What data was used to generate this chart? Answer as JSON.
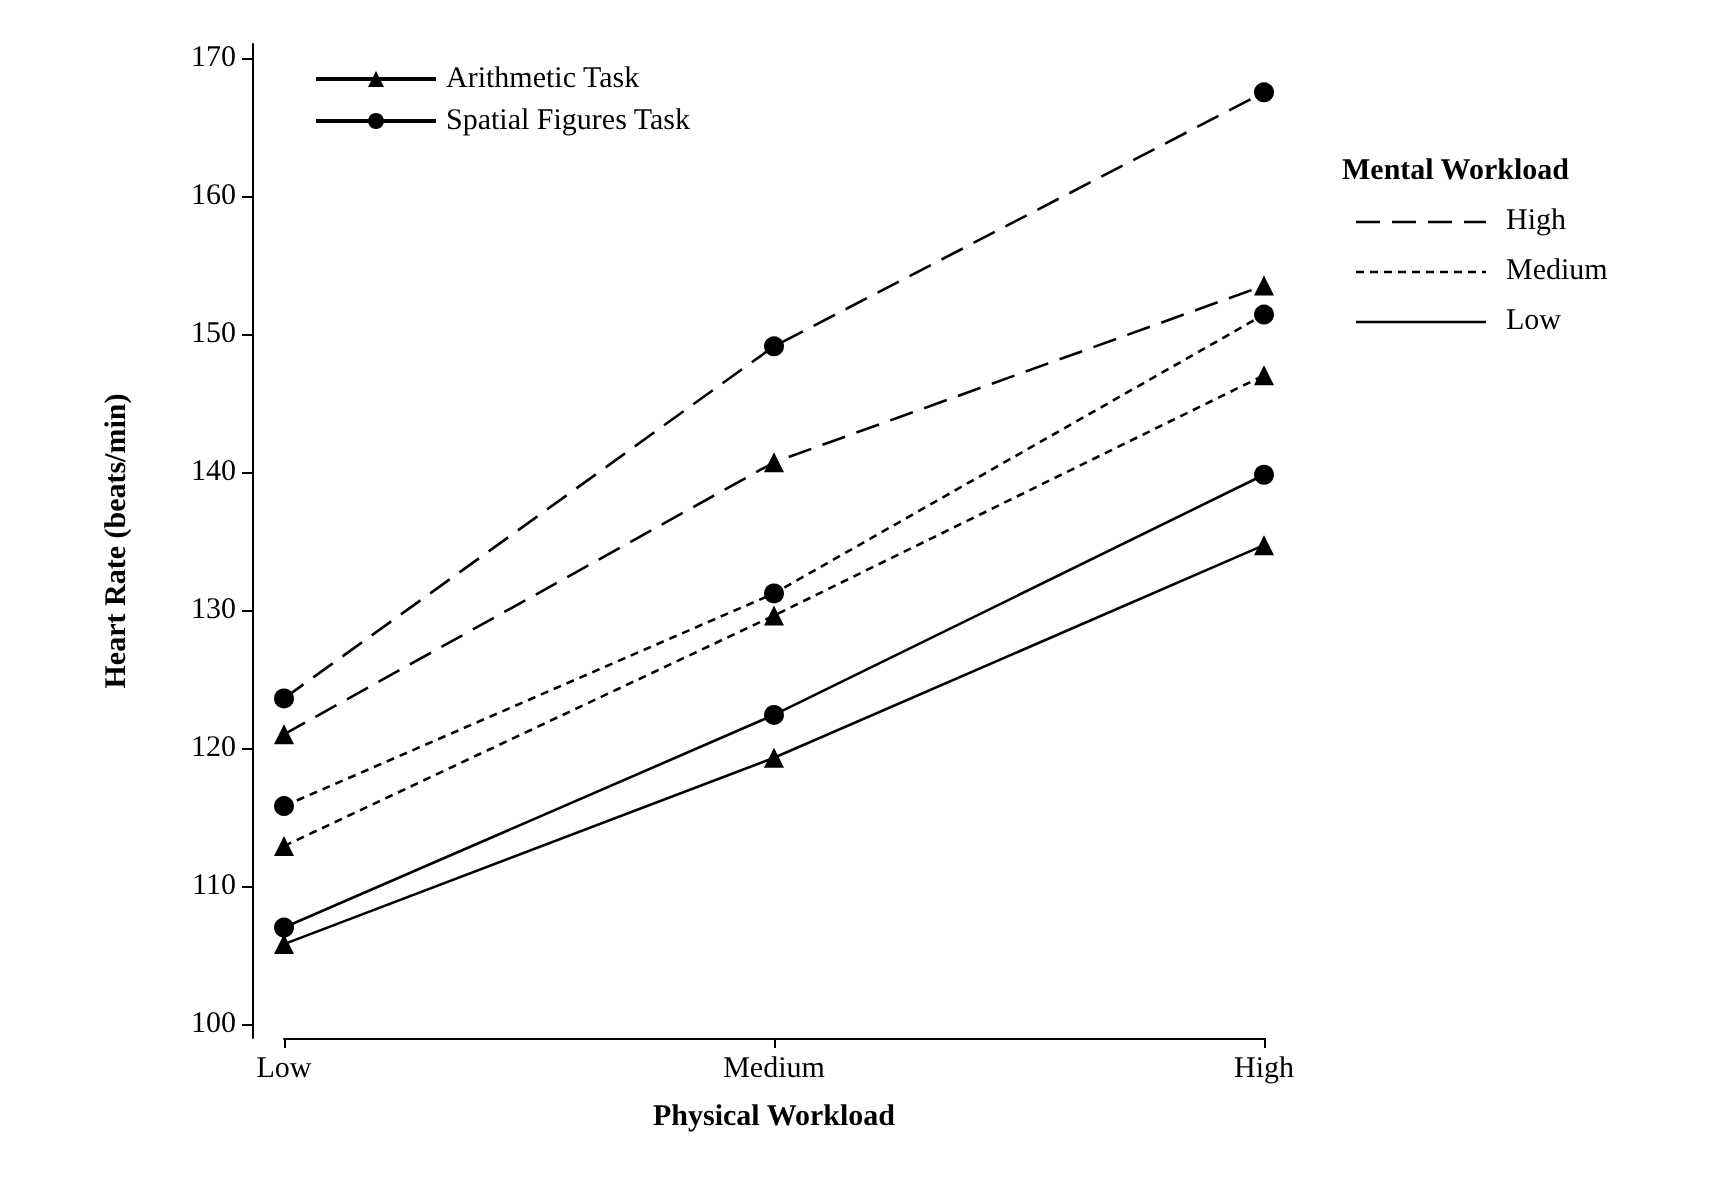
{
  "chart_data": {
    "type": "line",
    "xlabel": "Physical Workload",
    "ylabel": "Heart Rate (beats/min)",
    "categories": [
      "Low",
      "Medium",
      "High"
    ],
    "ylim": [
      99,
      171
    ],
    "yticks": [
      100,
      110,
      120,
      130,
      140,
      150,
      160,
      170
    ],
    "grid": false,
    "legend": "top left",
    "legend_title": "Mental Workload",
    "annotations": [
      "High",
      "Medium",
      "Low"
    ],
    "series": [
      {
        "color": "#000000",
        "marker": "triangle",
        "line_style": "dashed",
        "values": [
          121,
          140.7,
          153.5
        ]
      },
      {
        "color": "#000000",
        "marker": "circle",
        "line_style": "dashed",
        "values": [
          123.6,
          149.1,
          167.5
        ]
      },
      {
        "color": "#000000",
        "marker": "triangle",
        "line_style": "dotted",
        "values": [
          112.9,
          129.6,
          147
        ]
      },
      {
        "color": "#000000",
        "marker": "circle",
        "line_style": "dotted",
        "values": [
          115.8,
          131.2,
          151.4
        ]
      },
      {
        "name": "Arithmetic Task",
        "color": "#000000",
        "marker": "triangle",
        "line_style": "solid",
        "values": [
          105.8,
          119.3,
          134.7
        ]
      },
      {
        "name": "Spatial Figures Task",
        "color": "#000000",
        "marker": "circle",
        "line_style": "solid",
        "values": [
          107,
          122.4,
          139.8
        ]
      }
    ]
  }
}
